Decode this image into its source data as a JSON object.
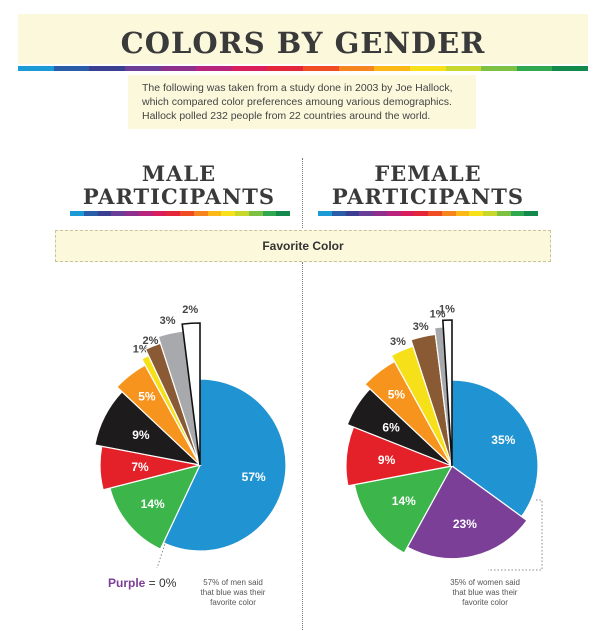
{
  "header": {
    "title": "COLORS BY GENDER",
    "intro_lines": [
      "The following was taken from a study done in 2003 by Joe Hallock,",
      "which compared color preferences amoung various demographics.",
      "Hallock polled 232 people from 22 countries around the world."
    ]
  },
  "stripe_colors": [
    "#1b9ad6",
    "#2a5da8",
    "#3b3f92",
    "#6a3d96",
    "#8e2f8c",
    "#b8237b",
    "#d91e5b",
    "#e3263a",
    "#ef4c24",
    "#f6851f",
    "#fbb817",
    "#f7e11a",
    "#c8d72c",
    "#7cc142",
    "#2fa84f",
    "#128a4b"
  ],
  "sections": {
    "male_line1": "MALE",
    "male_line2": "PARTICIPANTS",
    "female_line1": "FEMALE",
    "female_line2": "PARTICIPANTS"
  },
  "subtitle": "Favorite Color",
  "notes": {
    "male_lines": [
      "57% of men said",
      "that blue was their",
      "favorite color"
    ],
    "female_lines": [
      "35% of women said",
      "that blue was their",
      "favorite color"
    ],
    "purple_word": "Purple",
    "purple_rest": " = 0%"
  },
  "chart_data": [
    {
      "type": "pie",
      "title": "MALE PARTICIPANTS",
      "subtitle": "Favorite Color",
      "slices": [
        {
          "label": "57%",
          "value": 57,
          "color": "#2093d2"
        },
        {
          "label": "14%",
          "value": 14,
          "color": "#3cb54a"
        },
        {
          "label": "7%",
          "value": 7,
          "color": "#e42128"
        },
        {
          "label": "9%",
          "value": 9,
          "color": "#1d1b1b"
        },
        {
          "label": "5%",
          "value": 5,
          "color": "#f7941d"
        },
        {
          "label": "1%",
          "value": 1,
          "color": "#f6e01a"
        },
        {
          "label": "2%",
          "value": 2,
          "color": "#8a5a34"
        },
        {
          "label": "3%",
          "value": 3,
          "color": "#a7a9ac"
        },
        {
          "label": "2%",
          "value": 2,
          "color": "#ffffff"
        }
      ],
      "annotations": [
        "Purple = 0%",
        "57% of men said that blue was their favorite color"
      ]
    },
    {
      "type": "pie",
      "title": "FEMALE PARTICIPANTS",
      "subtitle": "Favorite Color",
      "slices": [
        {
          "label": "35%",
          "value": 35,
          "color": "#2093d2"
        },
        {
          "label": "23%",
          "value": 23,
          "color": "#7b3f98"
        },
        {
          "label": "14%",
          "value": 14,
          "color": "#3cb54a"
        },
        {
          "label": "9%",
          "value": 9,
          "color": "#e42128"
        },
        {
          "label": "6%",
          "value": 6,
          "color": "#1d1b1b"
        },
        {
          "label": "5%",
          "value": 5,
          "color": "#f7941d"
        },
        {
          "label": "3%",
          "value": 3,
          "color": "#f6e01a"
        },
        {
          "label": "3%",
          "value": 3,
          "color": "#8a5a34"
        },
        {
          "label": "1%",
          "value": 1,
          "color": "#a7a9ac"
        },
        {
          "label": "1%",
          "value": 1,
          "color": "#ffffff"
        }
      ],
      "annotations": [
        "35% of women said that blue was their favorite color"
      ]
    }
  ]
}
